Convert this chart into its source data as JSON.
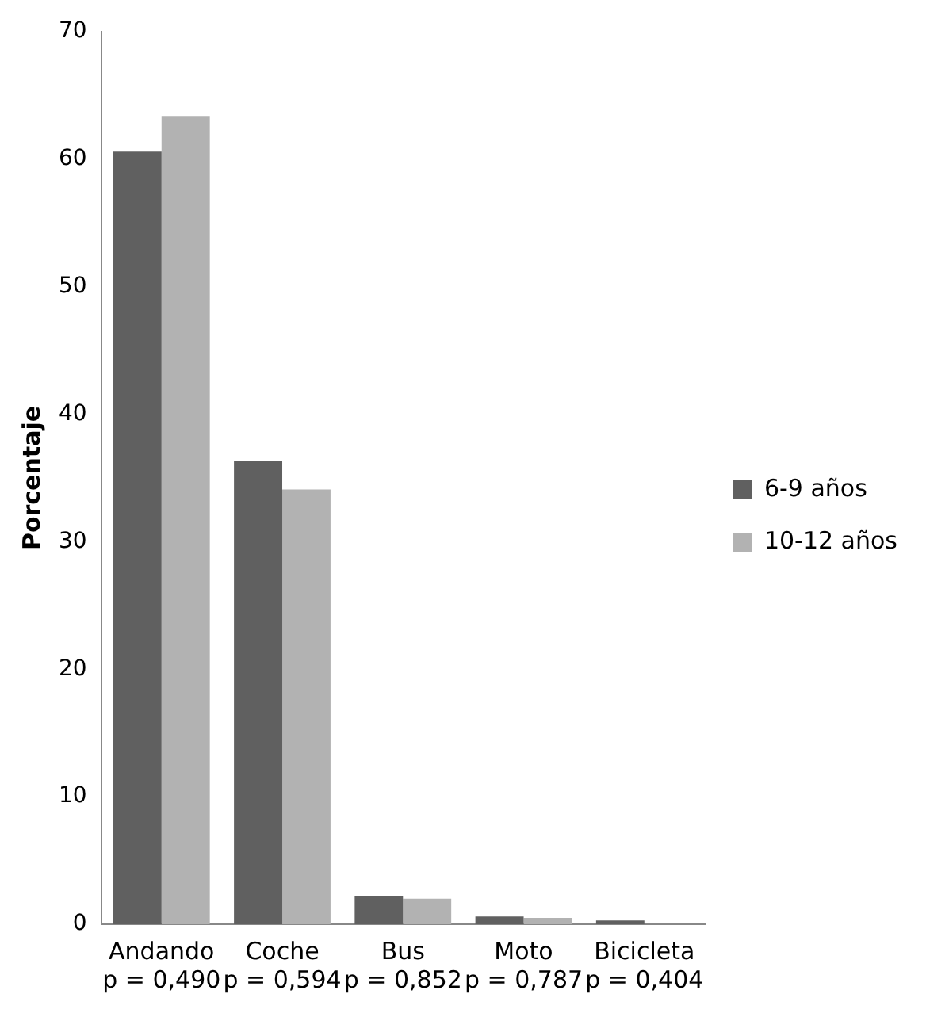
{
  "chart_data": {
    "type": "bar",
    "ylabel": "Porcentaje",
    "categories": [
      "Andando\np = 0,490",
      "Coche\np = 0,594",
      "Bus\np = 0,852",
      "Moto\np = 0,787",
      "Bicicleta\np = 0,404"
    ],
    "series": [
      {
        "name": "6-9 años",
        "color": "#606060",
        "values": [
          60.6,
          36.3,
          2.2,
          0.6,
          0.3
        ]
      },
      {
        "name": "10-12 años",
        "color": "#b2b2b2",
        "values": [
          63.4,
          34.1,
          2.0,
          0.5,
          0
        ]
      }
    ],
    "ylim": [
      0,
      70
    ],
    "yticks": [
      0,
      10,
      20,
      30,
      40,
      50,
      60,
      70
    ],
    "grid": false,
    "legend": "right"
  }
}
